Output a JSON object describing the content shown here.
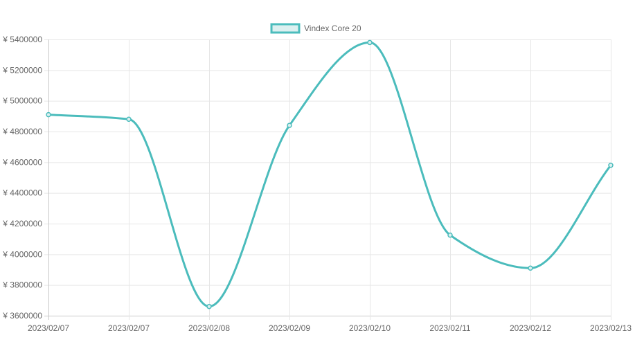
{
  "chart_data": {
    "type": "line",
    "title": "",
    "xlabel": "",
    "ylabel": "",
    "categories": [
      "2023/02/07",
      "2023/02/07",
      "2023/02/08",
      "2023/02/09",
      "2023/02/10",
      "2023/02/11",
      "2023/02/12",
      "2023/02/13"
    ],
    "series": [
      {
        "name": "Vindex Core 20",
        "values": [
          4910000,
          4880000,
          3660000,
          4840000,
          5380000,
          4125000,
          3910000,
          4580000
        ]
      }
    ],
    "ylim": [
      3600000,
      5400000
    ],
    "yticks": [
      3600000,
      3800000,
      4000000,
      4200000,
      4400000,
      4600000,
      4800000,
      5000000,
      5200000,
      5400000
    ],
    "ytick_labels": [
      "¥ 3600000",
      "¥ 3800000",
      "¥ 4000000",
      "¥ 4200000",
      "¥ 4400000",
      "¥ 4600000",
      "¥ 4800000",
      "¥ 5000000",
      "¥ 5200000",
      "¥ 5400000"
    ],
    "grid": true,
    "legend_position": "top",
    "colors": {
      "line": "#4bbcbc",
      "fill": "#dcf0f0",
      "grid": "#e6e6e6",
      "text": "#666666"
    }
  }
}
